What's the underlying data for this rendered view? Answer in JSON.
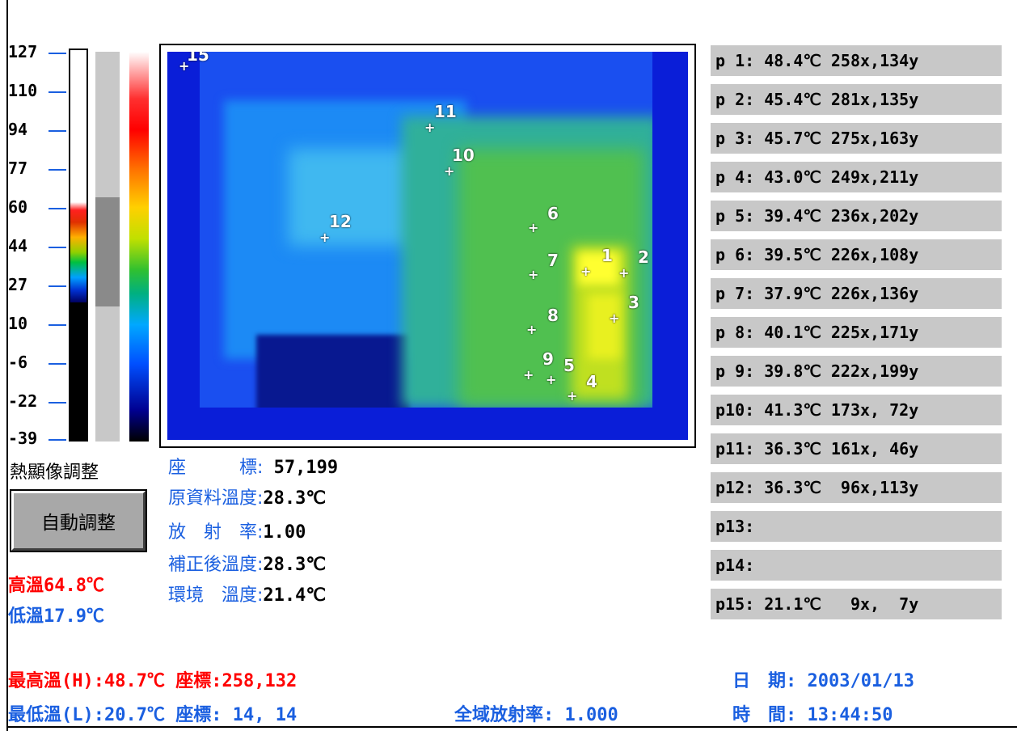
{
  "scale": {
    "labels": [
      "127",
      "110",
      "94",
      "77",
      "60",
      "44",
      "27",
      "10",
      "-6",
      "-22",
      "-39"
    ]
  },
  "thermal_markers": [
    {
      "label": "1"
    },
    {
      "label": "2"
    },
    {
      "label": "3"
    },
    {
      "label": "4"
    },
    {
      "label": "5"
    },
    {
      "label": "6"
    },
    {
      "label": "7"
    },
    {
      "label": "8"
    },
    {
      "label": "9"
    },
    {
      "label": "10"
    },
    {
      "label": "11"
    },
    {
      "label": "12"
    },
    {
      "label": "15"
    }
  ],
  "controls": {
    "adjust_title": "熱顯像調整",
    "auto_button": "自動調整",
    "high_temp": "高溫64.8℃",
    "low_temp": "低溫17.9℃"
  },
  "info": {
    "coord_label": "座　　　標:",
    "coord_value": " 57,199",
    "raw_label": "原資料溫度:",
    "raw_value": "28.3℃",
    "emis_label": "放　射　率:",
    "emis_value": "1.00",
    "corr_label": "補正後溫度:",
    "corr_value": "28.3℃",
    "env_label": "環境　溫度:",
    "env_value": "21.4℃"
  },
  "points": [
    "p 1: 48.4℃ 258x,134y",
    "p 2: 45.4℃ 281x,135y",
    "p 3: 45.7℃ 275x,163y",
    "p 4: 43.0℃ 249x,211y",
    "p 5: 39.4℃ 236x,202y",
    "p 6: 39.5℃ 226x,108y",
    "p 7: 37.9℃ 226x,136y",
    "p 8: 40.1℃ 225x,171y",
    "p 9: 39.8℃ 222x,199y",
    "p10: 41.3℃ 173x, 72y",
    "p11: 36.3℃ 161x, 46y",
    "p12: 36.3℃  96x,113y",
    "p13:",
    "p14:",
    "p15: 21.1℃   9x,  7y"
  ],
  "bottom": {
    "max_label": "最高溫(H):",
    "max_value": "48.7℃",
    "max_coord_label": " 座標:",
    "max_coord_value": "258,132",
    "min_label": "最低溫(L):",
    "min_value": "20.7℃",
    "min_coord_label": " 座標:",
    "min_coord_value": " 14, 14",
    "global_emis_label": "全域放射率:",
    "global_emis_value": " 1.000",
    "date_label": "日　期:",
    "date_value": " 2003/01/13",
    "time_label": "時　間:",
    "time_value": " 13:44:50"
  },
  "colors": {
    "accent_blue": "#1a5fe0",
    "hot_red": "#ff0000",
    "panel_gray": "#c8c8c8"
  }
}
